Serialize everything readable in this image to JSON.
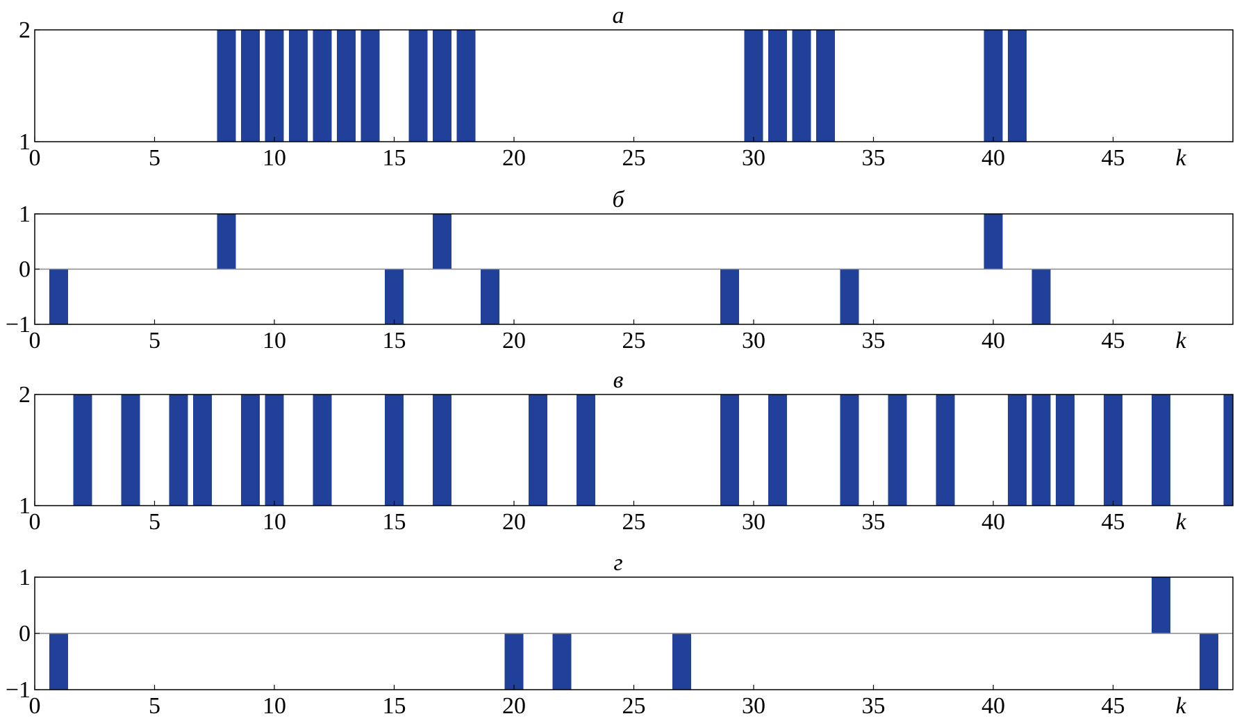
{
  "chart_data": [
    {
      "type": "bar",
      "title": "а",
      "xlabel": "k",
      "ylabel": "",
      "xlim": [
        0,
        50
      ],
      "ylim": [
        1,
        2
      ],
      "xticks": [
        0,
        5,
        10,
        15,
        20,
        25,
        30,
        35,
        40,
        45
      ],
      "yticks": [
        1,
        2
      ],
      "baseline": 1,
      "x": [
        8,
        9,
        10,
        11,
        12,
        13,
        14,
        16,
        17,
        18,
        30,
        31,
        32,
        33,
        40,
        41
      ],
      "values": [
        2,
        2,
        2,
        2,
        2,
        2,
        2,
        2,
        2,
        2,
        2,
        2,
        2,
        2,
        2,
        2
      ],
      "color": "#21409a"
    },
    {
      "type": "bar",
      "title": "б",
      "xlabel": "k",
      "ylabel": "",
      "xlim": [
        0,
        50
      ],
      "ylim": [
        -1,
        1
      ],
      "xticks": [
        0,
        5,
        10,
        15,
        20,
        25,
        30,
        35,
        40,
        45
      ],
      "yticks": [
        -1,
        0,
        1
      ],
      "baseline": 0,
      "x": [
        1,
        8,
        15,
        17,
        19,
        29,
        34,
        40,
        42
      ],
      "values": [
        -1,
        1,
        -1,
        1,
        -1,
        -1,
        -1,
        1,
        -1
      ],
      "color": "#21409a"
    },
    {
      "type": "bar",
      "title": "в",
      "xlabel": "k",
      "ylabel": "",
      "xlim": [
        0,
        50
      ],
      "ylim": [
        1,
        2
      ],
      "xticks": [
        0,
        5,
        10,
        15,
        20,
        25,
        30,
        35,
        40,
        45
      ],
      "yticks": [
        1,
        2
      ],
      "baseline": 1,
      "x": [
        2,
        4,
        6,
        7,
        9,
        10,
        12,
        15,
        17,
        21,
        23,
        29,
        31,
        34,
        36,
        38,
        41,
        42,
        43,
        45,
        47,
        50
      ],
      "values": [
        2,
        2,
        2,
        2,
        2,
        2,
        2,
        2,
        2,
        2,
        2,
        2,
        2,
        2,
        2,
        2,
        2,
        2,
        2,
        2,
        2,
        2
      ],
      "color": "#21409a"
    },
    {
      "type": "bar",
      "title": "г",
      "xlabel": "k",
      "ylabel": "",
      "xlim": [
        0,
        50
      ],
      "ylim": [
        -1,
        1
      ],
      "xticks": [
        0,
        5,
        10,
        15,
        20,
        25,
        30,
        35,
        40,
        45
      ],
      "yticks": [
        -1,
        0,
        1
      ],
      "baseline": 0,
      "x": [
        1,
        20,
        22,
        27,
        47,
        49
      ],
      "values": [
        -1,
        -1,
        -1,
        -1,
        1,
        -1
      ],
      "color": "#21409a"
    }
  ]
}
